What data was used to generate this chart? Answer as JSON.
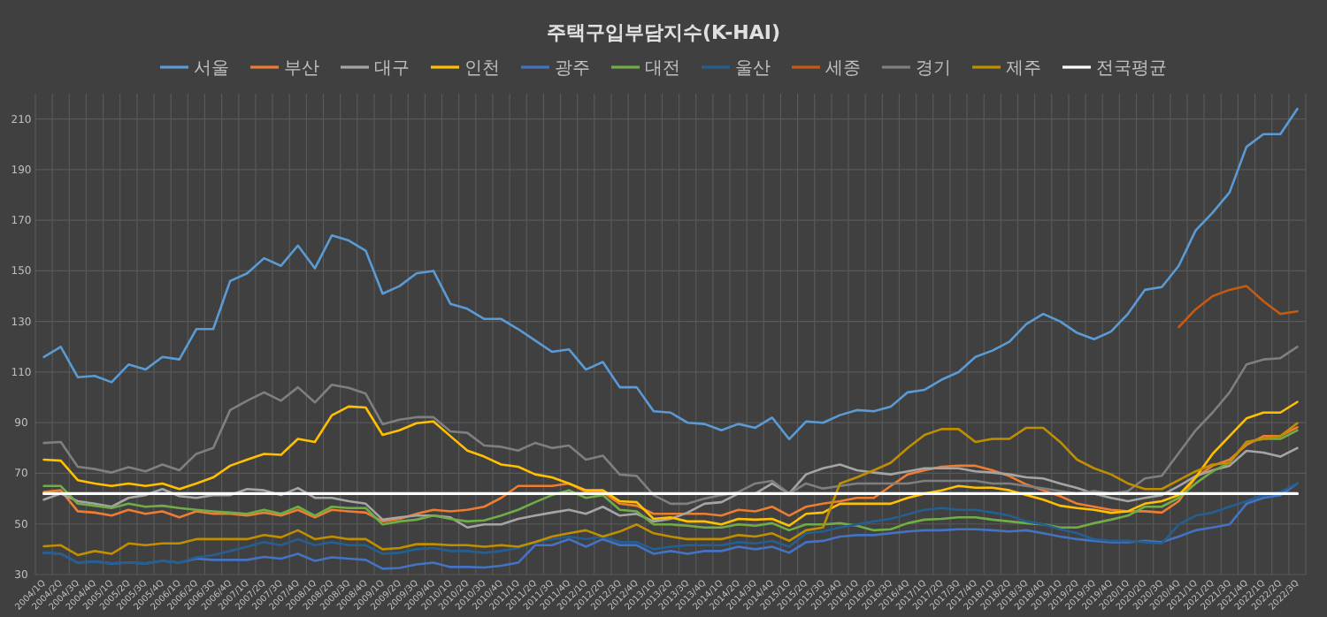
{
  "chart_data": {
    "type": "line",
    "title": "주택구입부담지수(K-HAI)",
    "legend": "top",
    "grid": true,
    "marker": "none",
    "line_style": "solid",
    "ylim": [
      30,
      220
    ],
    "yticks": [
      30,
      50,
      70,
      90,
      110,
      130,
      150,
      170,
      190,
      210
    ],
    "categories": [
      "2004/1Q",
      "2004/2Q",
      "2004/3Q",
      "2004/4Q",
      "2005/1Q",
      "2005/2Q",
      "2005/3Q",
      "2005/4Q",
      "2006/1Q",
      "2006/2Q",
      "2006/3Q",
      "2006/4Q",
      "2007/1Q",
      "2007/2Q",
      "2007/3Q",
      "2007/4Q",
      "2008/1Q",
      "2008/2Q",
      "2008/3Q",
      "2008/4Q",
      "2009/1Q",
      "2009/2Q",
      "2009/3Q",
      "2009/4Q",
      "2010/1Q",
      "2010/2Q",
      "2010/3Q",
      "2010/4Q",
      "2011/1Q",
      "2011/2Q",
      "2011/3Q",
      "2011/4Q",
      "2012/1Q",
      "2012/2Q",
      "2012/3Q",
      "2012/4Q",
      "2013/1Q",
      "2013/2Q",
      "2013/3Q",
      "2013/4Q",
      "2014/1Q",
      "2014/2Q",
      "2014/3Q",
      "2014/4Q",
      "2015/1Q",
      "2015/2Q",
      "2015/3Q",
      "2015/4Q",
      "2016/1Q",
      "2016/2Q",
      "2016/3Q",
      "2016/4Q",
      "2017/1Q",
      "2017/2Q",
      "2017/3Q",
      "2017/4Q",
      "2018/1Q",
      "2018/2Q",
      "2018/3Q",
      "2018/4Q",
      "2019/1Q",
      "2019/2Q",
      "2019/3Q",
      "2019/4Q",
      "2020/1Q",
      "2020/2Q",
      "2020/3Q",
      "2020/4Q",
      "2021/1Q",
      "2021/2Q",
      "2021/3Q",
      "2021/4Q",
      "2022/1Q",
      "2022/2Q",
      "2022/3Q"
    ],
    "series": [
      {
        "name": "서울",
        "color": "#5b9bd5",
        "values": [
          116,
          120,
          108,
          108.5,
          106,
          113,
          111,
          116,
          115,
          127,
          127,
          146,
          149,
          155,
          152,
          160,
          151,
          164,
          162,
          158,
          141,
          144,
          149,
          150,
          137,
          135,
          131,
          131,
          127,
          122.5,
          118,
          119,
          111,
          114,
          104,
          104,
          94.5,
          94,
          90,
          89.5,
          87,
          89.5,
          88,
          92,
          83.5,
          90.5,
          90,
          93,
          95,
          94.5,
          96.4,
          102,
          103,
          107,
          110,
          116,
          118.5,
          122,
          129,
          133,
          130,
          125.5,
          123,
          126,
          133,
          142.5,
          143.6,
          152,
          166,
          173,
          181,
          199,
          204,
          204,
          214
        ]
      },
      {
        "name": "부산",
        "color": "#ed7d31",
        "values": [
          62.6,
          63.3,
          55,
          54.5,
          53.3,
          55.6,
          54,
          55,
          52.6,
          55,
          54,
          54,
          53.3,
          54.5,
          53.3,
          55.6,
          52.6,
          55.6,
          55,
          54.5,
          51,
          52,
          54,
          55.6,
          55,
          55.6,
          56.8,
          60.3,
          65,
          65,
          65,
          66,
          62.6,
          62.6,
          58,
          57.2,
          54,
          54,
          54,
          54,
          53.3,
          55.6,
          55,
          56.8,
          53.3,
          56.8,
          58,
          59,
          60.3,
          60.3,
          65,
          69.6,
          71.2,
          72.6,
          73,
          73,
          71.2,
          68.9,
          65.6,
          63.3,
          61,
          58,
          56.8,
          55.6,
          55,
          55,
          54.5,
          59,
          68.4,
          73,
          75.4,
          81.2,
          84.7,
          84.7,
          88.2
        ]
      },
      {
        "name": "대구",
        "color": "#a5a5a5",
        "values": [
          59.6,
          62,
          59,
          58,
          56.8,
          60.3,
          61.4,
          63.8,
          61,
          60.3,
          61.4,
          61.4,
          63.8,
          63.3,
          61.4,
          64.2,
          60.3,
          60.3,
          59,
          58,
          51.7,
          52.6,
          53.3,
          53.3,
          52.6,
          48.6,
          49.8,
          49.8,
          52,
          53.3,
          54.5,
          55.6,
          54,
          56.8,
          53.3,
          54,
          51,
          52,
          54.5,
          58,
          58.6,
          62,
          62,
          66,
          62,
          69.6,
          72,
          73.5,
          71.2,
          70.3,
          69.6,
          70.8,
          72,
          72,
          72,
          70.8,
          70.3,
          69.6,
          68.4,
          68,
          66,
          64.2,
          62,
          60.3,
          59,
          60.3,
          61.4,
          65,
          68.9,
          71.2,
          73,
          78.9,
          78.2,
          76.6,
          80
        ]
      },
      {
        "name": "인천",
        "color": "#ffc000",
        "values": [
          75.4,
          75,
          67.3,
          66,
          65,
          66,
          65,
          66,
          63.8,
          66,
          68.4,
          73,
          75.4,
          77.7,
          77.3,
          83.6,
          82.4,
          92.9,
          96.4,
          96,
          85.2,
          87,
          89.8,
          90.5,
          84.7,
          79,
          76.6,
          73.5,
          72.6,
          69.6,
          68.4,
          66,
          63.3,
          63.3,
          59,
          58.6,
          52,
          52.6,
          51,
          51,
          49.8,
          52,
          51.7,
          52,
          49.3,
          54,
          54.5,
          58,
          58,
          58,
          58,
          60.3,
          62,
          63.3,
          65,
          64.3,
          64.3,
          63.3,
          61.4,
          59.6,
          57.2,
          56.3,
          55.6,
          54.4,
          55,
          58,
          59,
          61.4,
          68.4,
          77.7,
          84.7,
          91.7,
          94,
          94,
          98.2
        ]
      },
      {
        "name": "광주",
        "color": "#4472c4",
        "values": [
          38.6,
          38.2,
          34.7,
          35.1,
          34.4,
          34.7,
          34.4,
          35.4,
          34.7,
          36.3,
          35.8,
          35.8,
          35.8,
          37,
          36.3,
          38.2,
          35.4,
          36.8,
          36.3,
          35.8,
          32.3,
          32.6,
          34,
          34.7,
          33,
          33,
          32.8,
          33.5,
          34.7,
          41.6,
          41.6,
          44,
          41,
          44,
          41.6,
          41.6,
          38.2,
          39.3,
          38.2,
          39.3,
          39.3,
          41,
          40,
          41,
          38.6,
          42.8,
          43.3,
          45,
          45.6,
          45.6,
          46.3,
          47,
          47.5,
          47.5,
          47.9,
          47.9,
          47.5,
          47,
          47.5,
          46.3,
          45,
          44,
          43.3,
          42.8,
          42.8,
          43.3,
          42.8,
          45,
          47.5,
          48.6,
          49.8,
          58,
          60.3,
          61.4,
          66
        ]
      },
      {
        "name": "대전",
        "color": "#70ad47",
        "values": [
          65,
          65,
          58,
          57.2,
          56.3,
          58,
          56.8,
          57.2,
          56.3,
          55.6,
          55,
          54.5,
          54,
          55.6,
          54,
          56.8,
          53.3,
          56.8,
          56.3,
          56.3,
          49.8,
          51,
          51.7,
          53.3,
          52,
          51,
          51.4,
          53.3,
          55.6,
          58.6,
          61.4,
          63.3,
          60.3,
          61.4,
          55.6,
          55,
          49.8,
          49.8,
          49.3,
          48.6,
          48.6,
          49.8,
          49.3,
          50.3,
          47.5,
          49.8,
          49.8,
          50.3,
          49.3,
          47.5,
          47.9,
          50.3,
          51.7,
          52,
          52.6,
          52.6,
          51.7,
          51,
          50.3,
          49.8,
          48.6,
          48.6,
          50.3,
          51.7,
          53.3,
          56.8,
          56.8,
          60.3,
          66,
          70.8,
          74.2,
          82.4,
          83.6,
          83.6,
          87
        ]
      },
      {
        "name": "울산",
        "color": "#255e91",
        "values": [
          38.6,
          38.2,
          34.7,
          35.1,
          34.4,
          34.7,
          34.4,
          35.4,
          34.7,
          36.8,
          37.7,
          39.3,
          41,
          42.8,
          41.6,
          44,
          41.6,
          42.8,
          41.6,
          41.6,
          38.2,
          38.6,
          40,
          40.5,
          39.3,
          39.3,
          38.6,
          39.3,
          40.5,
          42.8,
          44,
          45,
          44,
          45,
          42.8,
          42.8,
          40,
          41,
          41.6,
          41.6,
          41.6,
          42.8,
          42.3,
          43.3,
          41,
          46.3,
          47,
          48.6,
          49.8,
          51,
          52,
          53.8,
          55.6,
          56.3,
          55.6,
          55.6,
          54.5,
          53.3,
          51,
          49.8,
          47.9,
          46.3,
          44,
          43.3,
          43.3,
          42.8,
          42.3,
          49.8,
          53.3,
          54.5,
          56.8,
          59,
          61.4,
          62.6,
          66
        ]
      },
      {
        "name": "세종",
        "color": "#c55a11",
        "values": [
          null,
          null,
          null,
          null,
          null,
          null,
          null,
          null,
          null,
          null,
          null,
          null,
          null,
          null,
          null,
          null,
          null,
          null,
          null,
          null,
          null,
          null,
          null,
          null,
          null,
          null,
          null,
          null,
          null,
          null,
          null,
          null,
          null,
          null,
          null,
          null,
          null,
          null,
          null,
          null,
          null,
          null,
          null,
          null,
          null,
          null,
          null,
          null,
          null,
          null,
          null,
          null,
          null,
          null,
          null,
          null,
          null,
          null,
          null,
          null,
          null,
          null,
          null,
          null,
          null,
          null,
          null,
          127.8,
          134.8,
          140,
          142.5,
          144,
          138,
          133,
          134
        ]
      },
      {
        "name": "경기",
        "color": "#7f7f7f",
        "values": [
          82,
          82.4,
          72.6,
          71.7,
          70.3,
          72.4,
          70.8,
          73.5,
          71.2,
          77.7,
          80,
          95,
          98.7,
          102,
          98.7,
          104,
          98,
          105,
          103.8,
          101.5,
          89.4,
          91.2,
          92.2,
          92.2,
          86.6,
          86,
          81,
          80.5,
          79,
          82,
          80,
          81,
          75.4,
          77,
          69.5,
          69,
          61.4,
          58,
          58,
          60,
          61.4,
          62.6,
          66,
          67,
          62,
          66,
          64,
          65,
          66,
          66,
          66,
          66,
          67,
          67,
          67,
          67,
          66,
          66,
          65,
          64,
          63,
          62,
          63,
          62,
          63,
          68,
          69,
          78,
          87,
          94,
          102,
          113,
          115,
          115.5,
          120
        ]
      },
      {
        "name": "제주",
        "color": "#bf8f00",
        "values": [
          41.2,
          41.6,
          37.7,
          39.3,
          38.2,
          42.3,
          41.6,
          42.3,
          42.3,
          44,
          44,
          44,
          44,
          45.6,
          44.7,
          47.5,
          44,
          45,
          44,
          44,
          40,
          40.5,
          42,
          42,
          41.6,
          41.6,
          41,
          41.6,
          41,
          42.8,
          45,
          46.3,
          47.5,
          45,
          47,
          49.8,
          46.3,
          45,
          44,
          44,
          44,
          45.6,
          45,
          46.3,
          43.3,
          47.5,
          48.6,
          66,
          68.4,
          71.2,
          74.2,
          80,
          85.2,
          87.5,
          87.5,
          82.4,
          83.6,
          83.6,
          88,
          88,
          82.4,
          75.4,
          72,
          69.6,
          66,
          63.8,
          63.8,
          67.3,
          70.8,
          73.5,
          74.2,
          82.4,
          83.6,
          84.7,
          89.8
        ]
      },
      {
        "name": "전국평균",
        "color": "#ffffff",
        "values": [
          62,
          62,
          62,
          62,
          62,
          62,
          62,
          62,
          62,
          62,
          62,
          62,
          62,
          62,
          62,
          62,
          62,
          62,
          62,
          62,
          62,
          62,
          62,
          62,
          62,
          62,
          62,
          62,
          62,
          62,
          62,
          62,
          62,
          62,
          62,
          62,
          62,
          62,
          62,
          62,
          62,
          62,
          62,
          62,
          62,
          62,
          62,
          62,
          62,
          62,
          62,
          62,
          62,
          62,
          62,
          62,
          62,
          62,
          62,
          62,
          62,
          62,
          62,
          62,
          62,
          62,
          62,
          62,
          62,
          62,
          62,
          62,
          62,
          62,
          62
        ]
      }
    ]
  }
}
